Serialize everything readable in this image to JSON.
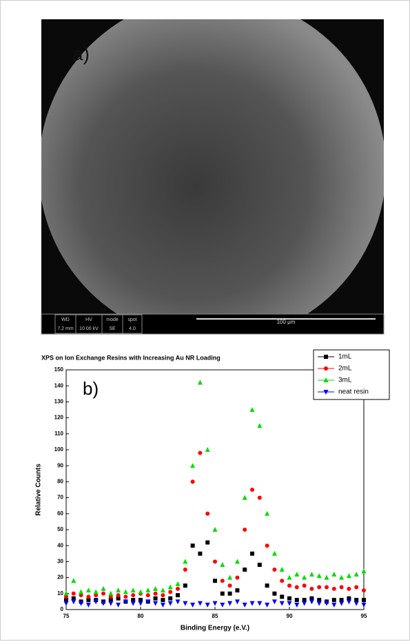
{
  "image": {
    "label": "a)",
    "info_bar": [
      {
        "title": "WD",
        "value": "7.2 mm"
      },
      {
        "title": "HV",
        "value": "10.00 kV"
      },
      {
        "title": "mode",
        "value": "SE"
      },
      {
        "title": "spot",
        "value": "4.0"
      }
    ],
    "scale_bar": "100 μm"
  },
  "chart_data": {
    "type": "scatter",
    "title": "XPS on Ion Exchange Resins with Increasing Au NR Loading",
    "panel_label": "b)",
    "x_label": "Binding Energy (e.V.)",
    "y_label": "Relative Counts",
    "xlim": [
      75,
      95
    ],
    "xticks": [
      75,
      80,
      85,
      90,
      95
    ],
    "ylim": [
      0,
      150
    ],
    "yticks": [
      0,
      10,
      20,
      30,
      40,
      50,
      60,
      70,
      80,
      90,
      100,
      110,
      120,
      130,
      140,
      150
    ],
    "legend": "upper right",
    "x": [
      75,
      75.5,
      76,
      76.5,
      77,
      77.5,
      78,
      78.5,
      79,
      79.5,
      80,
      80.5,
      81,
      81.5,
      82,
      82.5,
      83,
      83.5,
      84,
      84.5,
      85,
      85.5,
      86,
      86.5,
      87,
      87.5,
      88,
      88.5,
      89,
      89.5,
      90,
      90.5,
      91,
      91.5,
      92,
      92.5,
      93,
      93.5,
      94,
      94.5,
      95
    ],
    "series": [
      {
        "name": "1mL",
        "color": "#000000",
        "marker": "square",
        "values": [
          6,
          7,
          5,
          6,
          6,
          5,
          6,
          7,
          5,
          6,
          6,
          5,
          7,
          6,
          7,
          9,
          15,
          40,
          35,
          42,
          18,
          10,
          10,
          12,
          25,
          35,
          28,
          15,
          10,
          8,
          7,
          6,
          6,
          7,
          6,
          5,
          6,
          6,
          7,
          6,
          6
        ]
      },
      {
        "name": "2mL",
        "color": "#ff0000",
        "marker": "circle",
        "values": [
          8,
          10,
          9,
          8,
          9,
          10,
          8,
          9,
          8,
          9,
          10,
          9,
          10,
          9,
          11,
          13,
          25,
          80,
          98,
          60,
          30,
          18,
          15,
          20,
          50,
          75,
          70,
          40,
          25,
          18,
          15,
          14,
          15,
          13,
          14,
          14,
          13,
          14,
          13,
          14,
          12
        ]
      },
      {
        "name": "3mL",
        "color": "#00dd00",
        "marker": "triangle",
        "values": [
          10,
          18,
          11,
          12,
          11,
          13,
          10,
          12,
          11,
          12,
          11,
          12,
          13,
          12,
          14,
          16,
          30,
          90,
          142,
          100,
          50,
          28,
          20,
          30,
          70,
          125,
          115,
          60,
          35,
          25,
          20,
          22,
          20,
          22,
          21,
          20,
          22,
          20,
          21,
          22,
          24
        ]
      },
      {
        "name": "neat resin",
        "color": "#0000ff",
        "marker": "triangle-down",
        "values": [
          4,
          5,
          4,
          3,
          5,
          4,
          4,
          3,
          5,
          4,
          4,
          5,
          4,
          3,
          4,
          5,
          4,
          3,
          4,
          3,
          4,
          3,
          4,
          5,
          3,
          4,
          4,
          3,
          5,
          4,
          4,
          3,
          4,
          5,
          4,
          4,
          3,
          4,
          5,
          4,
          3
        ]
      }
    ]
  }
}
